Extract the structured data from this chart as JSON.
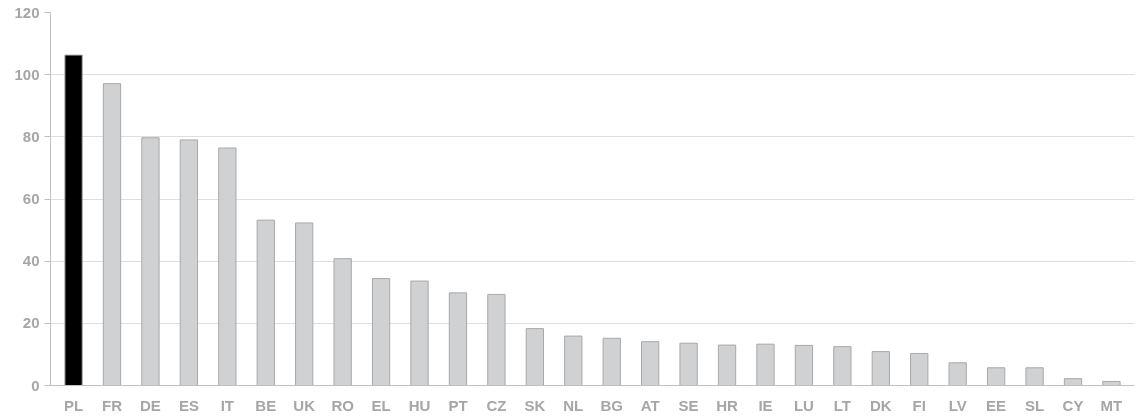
{
  "chart_data": {
    "type": "bar",
    "categories": [
      "PL",
      "FR",
      "DE",
      "ES",
      "IT",
      "BE",
      "UK",
      "RO",
      "EL",
      "HU",
      "PT",
      "CZ",
      "SK",
      "NL",
      "BG",
      "AT",
      "SE",
      "HR",
      "IE",
      "LU",
      "LT",
      "DK",
      "FI",
      "LV",
      "EE",
      "SL",
      "CY",
      "MT"
    ],
    "values": [
      106.3,
      97.1,
      79.7,
      79.0,
      76.4,
      53.2,
      52.3,
      40.8,
      34.4,
      33.6,
      29.8,
      29.3,
      18.3,
      15.9,
      15.2,
      14.1,
      13.6,
      13.0,
      13.3,
      12.9,
      12.5,
      10.9,
      10.3,
      7.3,
      5.7,
      5.7,
      2.2,
      1.3
    ],
    "colors": [
      "#000000",
      "#d0d1d3",
      "#d0d1d3",
      "#d0d1d3",
      "#d0d1d3",
      "#d0d1d3",
      "#d0d1d3",
      "#d0d1d3",
      "#d0d1d3",
      "#d0d1d3",
      "#d0d1d3",
      "#d0d1d3",
      "#d0d1d3",
      "#d0d1d3",
      "#d0d1d3",
      "#d0d1d3",
      "#d0d1d3",
      "#d0d1d3",
      "#d0d1d3",
      "#d0d1d3",
      "#d0d1d3",
      "#d0d1d3",
      "#d0d1d3",
      "#d0d1d3",
      "#d0d1d3",
      "#d0d1d3",
      "#d0d1d3",
      "#d0d1d3"
    ],
    "ylim": [
      0,
      120
    ],
    "yticks": [
      0,
      20,
      40,
      60,
      80,
      100,
      120
    ],
    "grid": "y"
  }
}
